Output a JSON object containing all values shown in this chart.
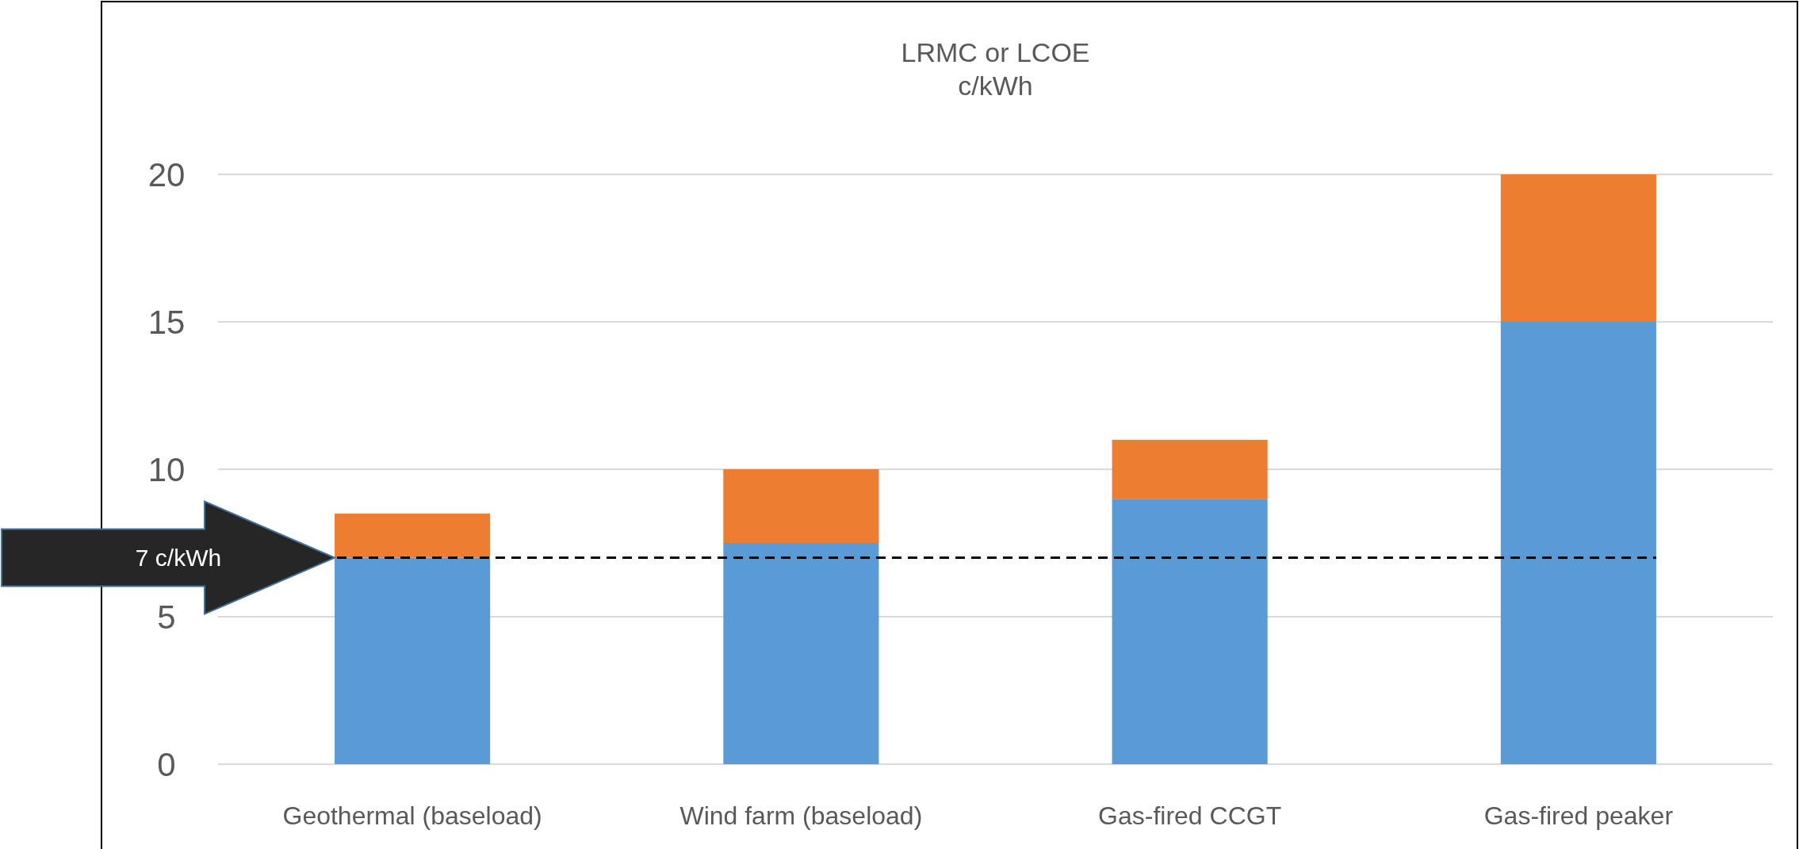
{
  "chart_data": {
    "type": "bar",
    "title": "LRMC or LCOE",
    "subtitle": "c/kWh",
    "stacked": true,
    "categories": [
      "Geothermal (baseload)",
      "Wind farm (baseload)",
      "Gas-fired  CCGT",
      "Gas-fired peaker"
    ],
    "series": [
      {
        "color": "#5b9bd5",
        "values": [
          7,
          7.5,
          9,
          15
        ]
      },
      {
        "color": "#ed7d31",
        "values": [
          1.5,
          2.5,
          2,
          5
        ]
      }
    ],
    "ylim": [
      0,
      20
    ],
    "yticks": [
      0,
      5,
      10,
      15,
      20
    ],
    "grid": "y",
    "ref_lines": [
      {
        "axis": "y",
        "value": 7,
        "label": "7 c/kWh",
        "color": "#000000",
        "line_style": "dashed"
      }
    ]
  }
}
